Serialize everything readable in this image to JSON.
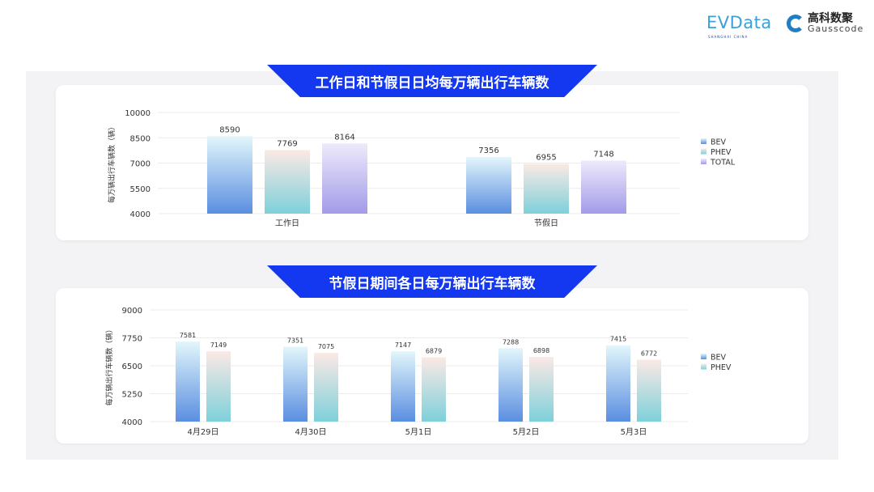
{
  "logos": {
    "evdata": "EVData",
    "evdata_sub": "SHANGHAI CHINA",
    "gauss_cn": "高科数聚",
    "gauss_en": "Gausscode"
  },
  "chart_data": [
    {
      "type": "bar",
      "title": "工作日和节假日日均每万辆出行车辆数",
      "ylabel": "每万辆出行车辆数（辆）",
      "xlabel": "",
      "categories": [
        "工作日",
        "节假日"
      ],
      "ylim": [
        4000,
        10000
      ],
      "yticks": [
        4000,
        5500,
        7000,
        8500,
        10000
      ],
      "grid": true,
      "legend": "right",
      "series": [
        {
          "name": "BEV",
          "values": [
            8590,
            7356
          ],
          "color_top": "#e2f6fb",
          "color_bottom": "#5a8ee0"
        },
        {
          "name": "PHEV",
          "values": [
            7769,
            6955
          ],
          "color_top": "#fbe9e5",
          "color_bottom": "#7ed0da"
        },
        {
          "name": "TOTAL",
          "values": [
            8164,
            7148
          ],
          "color_top": "#eeeafb",
          "color_bottom": "#a29be8"
        }
      ]
    },
    {
      "type": "bar",
      "title": "节假日期间各日每万辆出行车辆数",
      "ylabel": "每万辆出行车辆数（辆）",
      "xlabel": "",
      "categories": [
        "4月29日",
        "4月30日",
        "5月1日",
        "5月2日",
        "5月3日"
      ],
      "ylim": [
        4000,
        9000
      ],
      "yticks": [
        4000,
        5250,
        6500,
        7750,
        9000
      ],
      "grid": true,
      "legend": "right",
      "series": [
        {
          "name": "BEV",
          "values": [
            7581,
            7351,
            7147,
            7288,
            7415
          ],
          "color_top": "#e2f6fb",
          "color_bottom": "#5a8ee0"
        },
        {
          "name": "PHEV",
          "values": [
            7149,
            7075,
            6879,
            6898,
            6772
          ],
          "color_top": "#fbe9e5",
          "color_bottom": "#7ed0da"
        }
      ]
    }
  ]
}
